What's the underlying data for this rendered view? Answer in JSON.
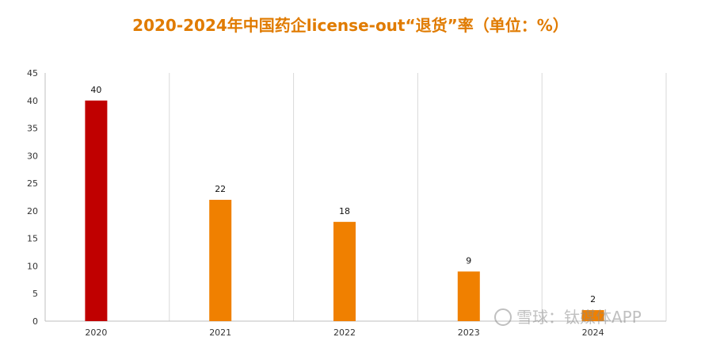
{
  "chart_data": {
    "type": "bar",
    "title": "2020-2024年中国药企license-out“退货”率（单位：%）",
    "categories": [
      "2020",
      "2021",
      "2022",
      "2023",
      "2024"
    ],
    "values": [
      40,
      22,
      18,
      9,
      2
    ],
    "bar_colors": [
      "#c00000",
      "#f08000",
      "#f08000",
      "#f08000",
      "#f08000"
    ],
    "ylim": [
      0,
      45
    ],
    "yticks": [
      0,
      5,
      10,
      15,
      20,
      25,
      30,
      35,
      40,
      45
    ],
    "xlabel": "",
    "ylabel": "",
    "grid": "vertical category separators",
    "legend": "none"
  },
  "watermark": {
    "text": "雪球：钛媒体APP",
    "icon": "snowball-logo-icon"
  },
  "colors": {
    "title": "#e07b00",
    "highlight_bar": "#c00000",
    "bar": "#f08000",
    "gridline": "#d9d9d9",
    "axis": "#bfbfbf"
  }
}
